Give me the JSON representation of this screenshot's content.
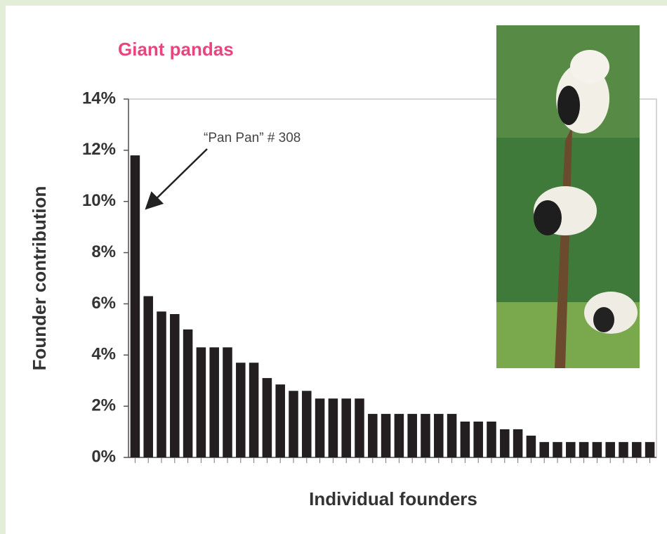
{
  "chart_data": {
    "type": "bar",
    "title": "Giant pandas",
    "y_label": "Founder contribution",
    "x_label": "Individual founders",
    "annotation": "“Pan Pan” # 308",
    "color": "#231f20",
    "categories": [
      null,
      null,
      null,
      null,
      null,
      null,
      null,
      null,
      null,
      null,
      null,
      null,
      null,
      null,
      null,
      null,
      null,
      null,
      null,
      null,
      null,
      null,
      null,
      null,
      null,
      null,
      null,
      null,
      null,
      null,
      null,
      null,
      null,
      null,
      null,
      null,
      null,
      null,
      null,
      null
    ],
    "values": [
      11.8,
      6.3,
      5.7,
      5.6,
      5.0,
      4.3,
      4.3,
      4.3,
      3.7,
      3.7,
      3.1,
      2.85,
      2.6,
      2.6,
      2.3,
      2.3,
      2.3,
      2.3,
      1.7,
      1.7,
      1.7,
      1.7,
      1.7,
      1.7,
      1.7,
      1.4,
      1.4,
      1.4,
      1.1,
      1.1,
      0.85,
      0.6,
      0.6,
      0.6,
      0.6,
      0.6,
      0.6,
      0.6,
      0.6,
      0.6
    ],
    "ylim": [
      0,
      14
    ],
    "yticks": [
      {
        "value": 0,
        "label": "0%"
      },
      {
        "value": 2,
        "label": "2%"
      },
      {
        "value": 4,
        "label": "4%"
      },
      {
        "value": 6,
        "label": "6%"
      },
      {
        "value": 8,
        "label": "8%"
      },
      {
        "value": 10,
        "label": "10%"
      },
      {
        "value": 12,
        "label": "12%"
      },
      {
        "value": 14,
        "label": "14%"
      }
    ]
  }
}
